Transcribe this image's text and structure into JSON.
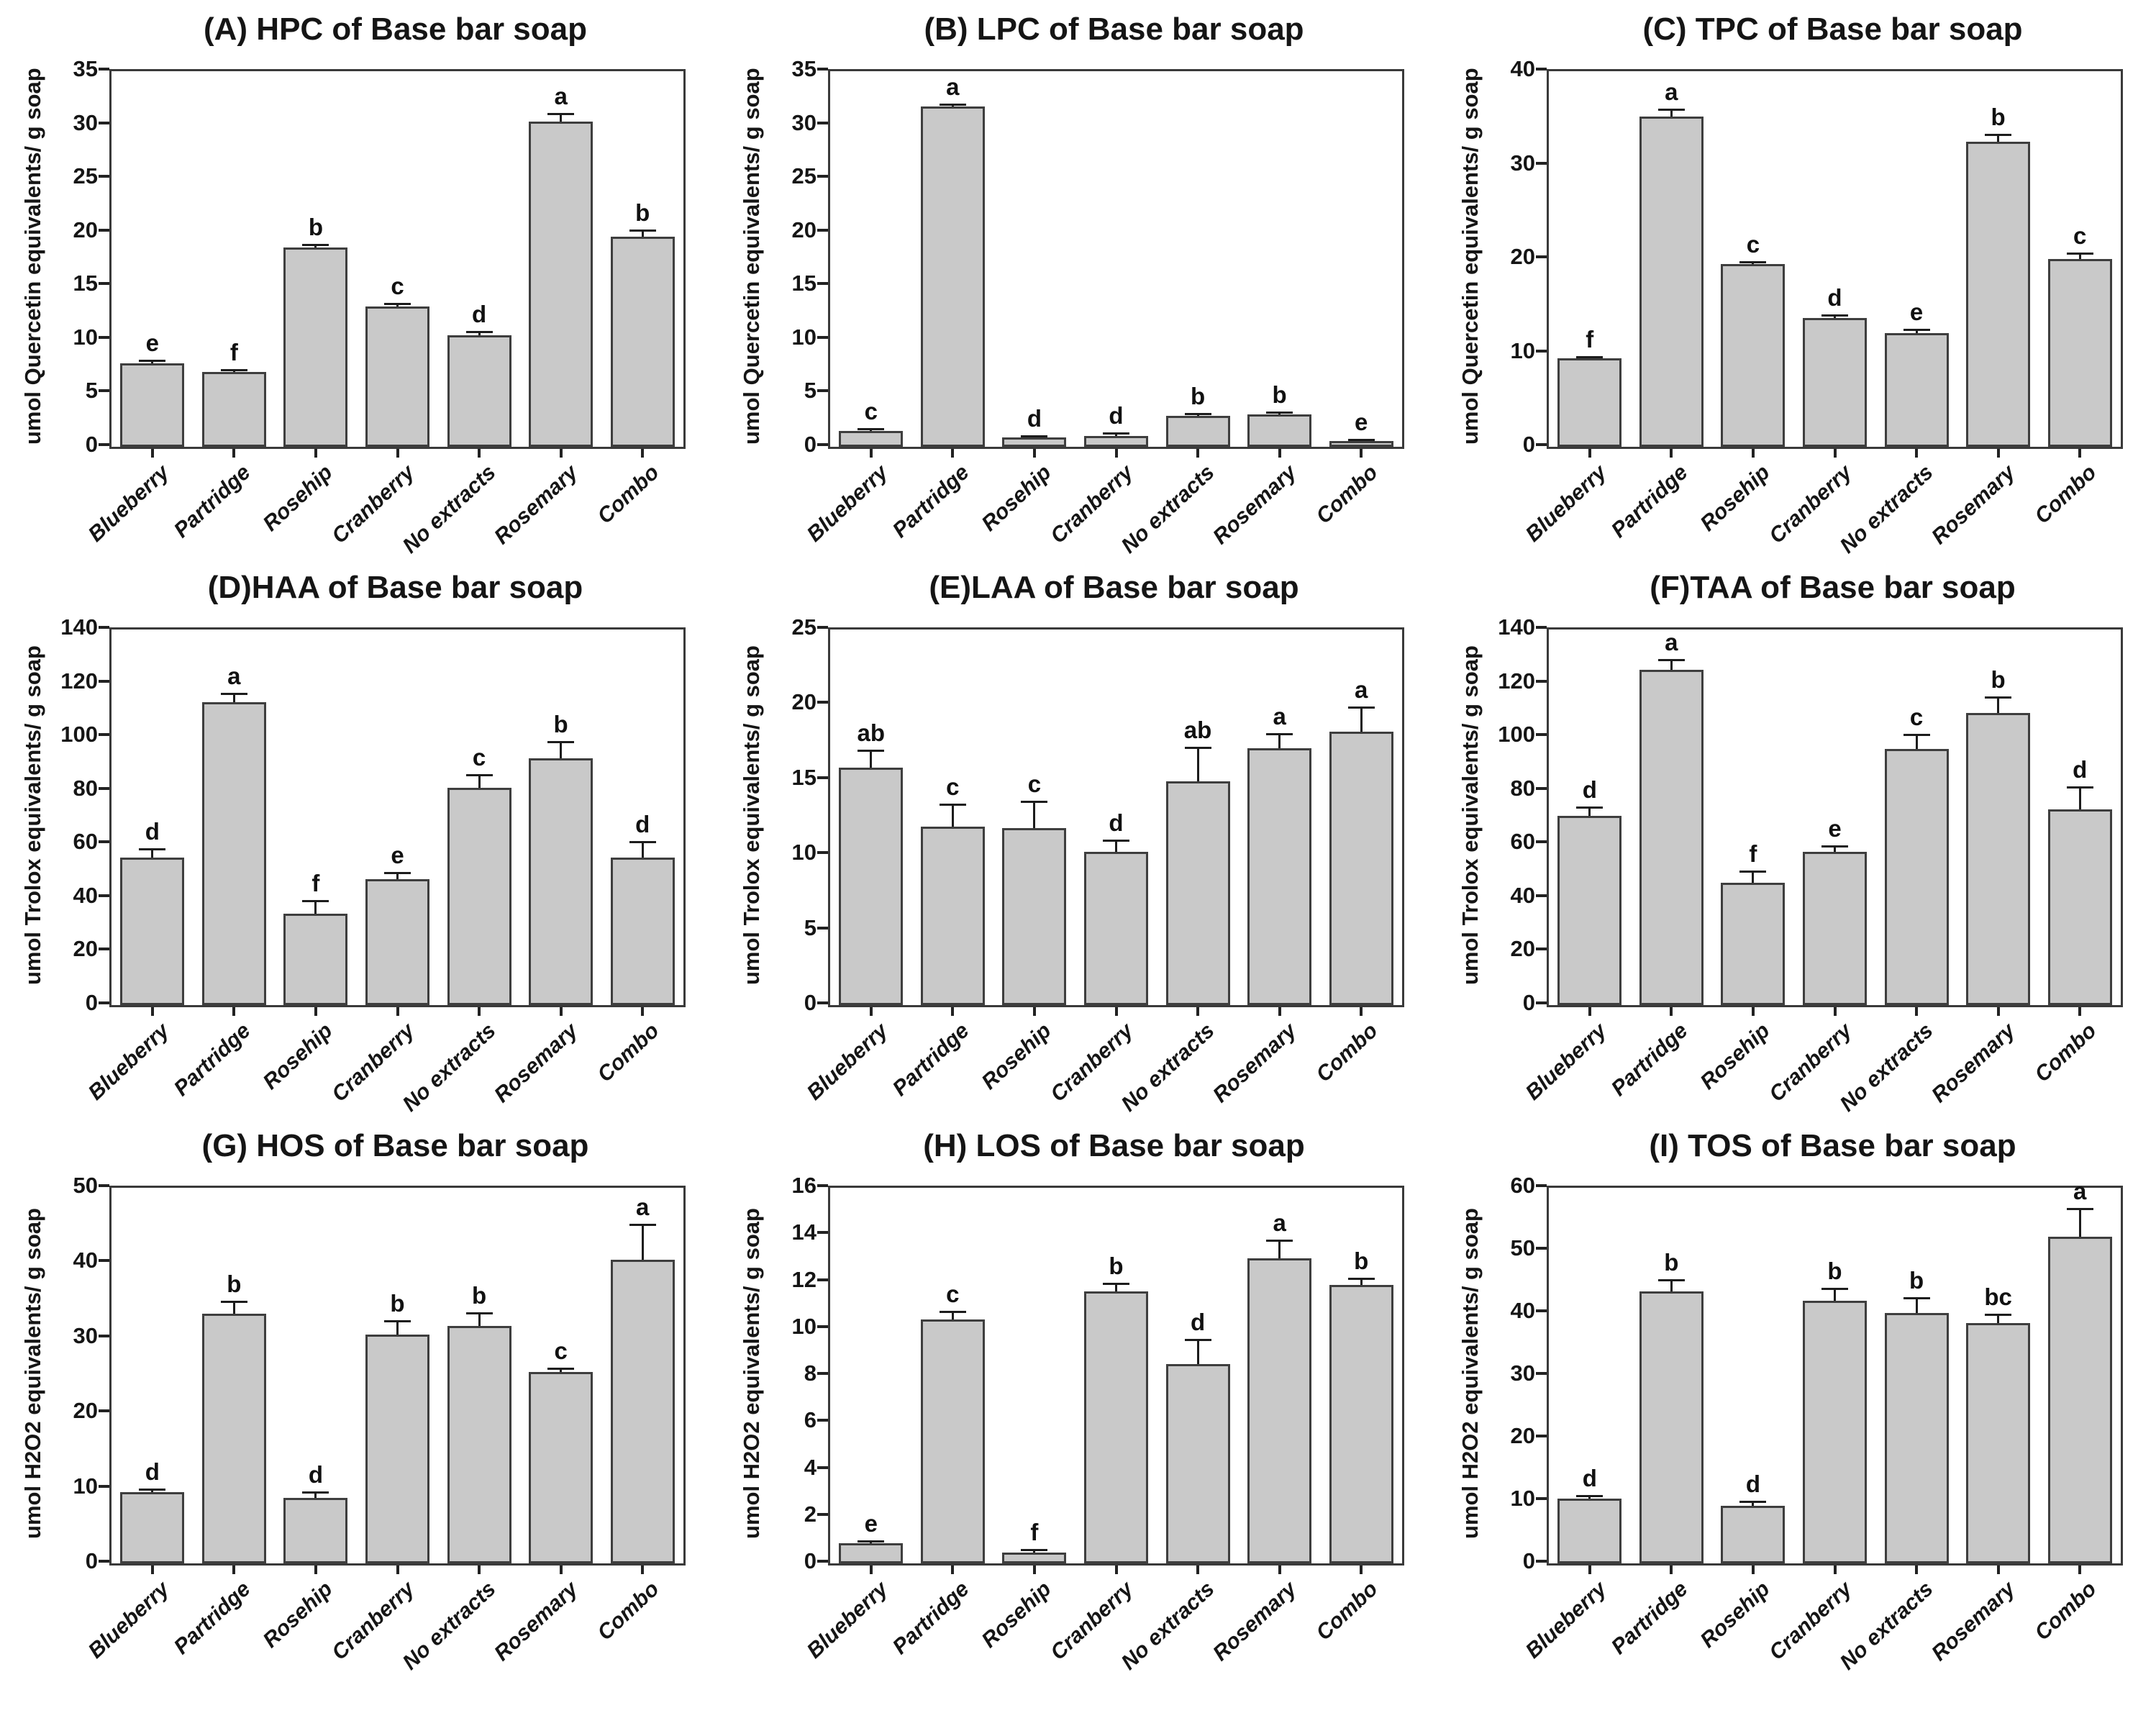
{
  "figure": {
    "background": "#ffffff",
    "bar_fill": "#c9c9c9",
    "bar_border": "#3e3e3e",
    "categories": [
      "Blueberry",
      "Partridge",
      "Rosehip",
      "Cranberry",
      "No extracts",
      "Rosemary",
      "Combo"
    ]
  },
  "chart_data": [
    {
      "id": "A",
      "type": "bar",
      "title": "(A) HPC of Base bar soap",
      "ylabel": "umol Quercetin equivalents/ g soap",
      "categories": [
        "Blueberry",
        "Partridge",
        "Rosehip",
        "Cranberry",
        "No extracts",
        "Rosemary",
        "Combo"
      ],
      "values": [
        7.8,
        7.0,
        18.6,
        13.1,
        10.4,
        30.3,
        19.6
      ],
      "errors": [
        0.15,
        0.1,
        0.2,
        0.2,
        0.25,
        0.7,
        0.5
      ],
      "letters": [
        "e",
        "f",
        "b",
        "c",
        "d",
        "a",
        "b"
      ],
      "ylim": [
        0,
        35
      ],
      "yticks": [
        0,
        5,
        10,
        15,
        20,
        25,
        30,
        35
      ],
      "grid": false,
      "legend": "none"
    },
    {
      "id": "B",
      "type": "bar",
      "title": "(B) LPC of Base bar soap",
      "ylabel": "umol Quercetin equivalents/ g soap",
      "categories": [
        "Blueberry",
        "Partridge",
        "Rosehip",
        "Cranberry",
        "No extracts",
        "Rosemary",
        "Combo"
      ],
      "values": [
        1.5,
        31.7,
        0.85,
        1.0,
        2.9,
        3.05,
        0.55
      ],
      "errors": [
        0.1,
        0.15,
        0.1,
        0.2,
        0.15,
        0.12,
        0.08
      ],
      "letters": [
        "c",
        "a",
        "d",
        "d",
        "b",
        "b",
        "e"
      ],
      "ylim": [
        0,
        35
      ],
      "yticks": [
        0,
        5,
        10,
        15,
        20,
        25,
        30,
        35
      ],
      "grid": false,
      "legend": "none"
    },
    {
      "id": "C",
      "type": "bar",
      "title": "(C) TPC of Base bar soap",
      "ylabel": "umol Quercetin equivalents/ g soap",
      "categories": [
        "Blueberry",
        "Partridge",
        "Rosehip",
        "Cranberry",
        "No extracts",
        "Rosemary",
        "Combo"
      ],
      "values": [
        9.4,
        35.2,
        19.5,
        13.7,
        12.1,
        32.5,
        20.0
      ],
      "errors": [
        0.1,
        0.7,
        0.15,
        0.25,
        0.3,
        0.7,
        0.5
      ],
      "letters": [
        "f",
        "a",
        "c",
        "d",
        "e",
        "b",
        "c"
      ],
      "ylim": [
        0,
        40
      ],
      "yticks": [
        0,
        10,
        20,
        30,
        40
      ],
      "grid": false,
      "legend": "none"
    },
    {
      "id": "D",
      "type": "bar",
      "title": "(D)HAA of Base bar soap",
      "ylabel": "umol Trolox equivalents/ g soap",
      "categories": [
        "Blueberry",
        "Partridge",
        "Rosehip",
        "Cranberry",
        "No extracts",
        "Rosemary",
        "Combo"
      ],
      "values": [
        55,
        113,
        34,
        47,
        81,
        92,
        55
      ],
      "errors": [
        3,
        3,
        4.5,
        2,
        4.5,
        6,
        5.5
      ],
      "letters": [
        "d",
        "a",
        "f",
        "e",
        "c",
        "b",
        "d"
      ],
      "ylim": [
        0,
        140
      ],
      "yticks": [
        0,
        20,
        40,
        60,
        80,
        100,
        120,
        140
      ],
      "grid": false,
      "legend": "none"
    },
    {
      "id": "E",
      "type": "bar",
      "title": "(E)LAA of Base bar soap",
      "ylabel": "umol Trolox equivalents/ g soap",
      "categories": [
        "Blueberry",
        "Partridge",
        "Rosehip",
        "Cranberry",
        "No extracts",
        "Rosemary",
        "Combo"
      ],
      "values": [
        15.8,
        11.9,
        11.8,
        10.2,
        14.9,
        17.1,
        18.2
      ],
      "errors": [
        1.1,
        1.4,
        1.7,
        0.7,
        2.2,
        0.9,
        1.6
      ],
      "letters": [
        "ab",
        "c",
        "c",
        "d",
        "ab",
        "a",
        "a"
      ],
      "ylim": [
        0,
        25
      ],
      "yticks": [
        0,
        5,
        10,
        15,
        20,
        25
      ],
      "grid": false,
      "legend": "none"
    },
    {
      "id": "F",
      "type": "bar",
      "title": "(F)TAA of Base bar soap",
      "ylabel": "umol Trolox equivalents/ g soap",
      "categories": [
        "Blueberry",
        "Partridge",
        "Rosehip",
        "Cranberry",
        "No extracts",
        "Rosemary",
        "Combo"
      ],
      "values": [
        70.5,
        125,
        45.5,
        57,
        95.5,
        109,
        73
      ],
      "errors": [
        3,
        3.5,
        4,
        2,
        5,
        5.5,
        8
      ],
      "letters": [
        "d",
        "a",
        "f",
        "e",
        "c",
        "b",
        "d"
      ],
      "ylim": [
        0,
        140
      ],
      "yticks": [
        0,
        20,
        40,
        60,
        80,
        100,
        120,
        140
      ],
      "grid": false,
      "legend": "none"
    },
    {
      "id": "G",
      "type": "bar",
      "title": "(G) HOS of Base bar soap",
      "ylabel": "umol H2O2 equivalents/ g soap",
      "categories": [
        "Blueberry",
        "Partridge",
        "Rosehip",
        "Cranberry",
        "No extracts",
        "Rosemary",
        "Combo"
      ],
      "values": [
        9.5,
        33.2,
        8.7,
        30.5,
        31.6,
        25.5,
        40.4
      ],
      "errors": [
        0.3,
        1.6,
        0.7,
        1.7,
        1.6,
        0.4,
        4.6
      ],
      "letters": [
        "d",
        "b",
        "d",
        "b",
        "b",
        "c",
        "a"
      ],
      "ylim": [
        0,
        50
      ],
      "yticks": [
        0,
        10,
        20,
        30,
        40,
        50
      ],
      "grid": false,
      "legend": "none"
    },
    {
      "id": "H",
      "type": "bar",
      "title": "(H) LOS of Base bar soap",
      "ylabel": "umol H2O2 equivalents/ g soap",
      "categories": [
        "Blueberry",
        "Partridge",
        "Rosehip",
        "Cranberry",
        "No extracts",
        "Rosemary",
        "Combo"
      ],
      "values": [
        0.85,
        10.4,
        0.45,
        11.6,
        8.5,
        13.0,
        11.85
      ],
      "errors": [
        0.08,
        0.3,
        0.1,
        0.3,
        1.0,
        0.72,
        0.25
      ],
      "letters": [
        "e",
        "c",
        "f",
        "b",
        "d",
        "a",
        "b"
      ],
      "ylim": [
        0,
        16
      ],
      "yticks": [
        0,
        2,
        4,
        6,
        8,
        10,
        12,
        14,
        16
      ],
      "grid": false,
      "legend": "none"
    },
    {
      "id": "I",
      "type": "bar",
      "title": "(I) TOS of Base bar soap",
      "ylabel": "umol H2O2 equivalents/ g soap",
      "categories": [
        "Blueberry",
        "Partridge",
        "Rosehip",
        "Cranberry",
        "No extracts",
        "Rosemary",
        "Combo"
      ],
      "values": [
        10.3,
        43.5,
        9.2,
        42.0,
        40.0,
        38.4,
        52.2
      ],
      "errors": [
        0.4,
        1.7,
        0.6,
        1.8,
        2.3,
        1.2,
        4.3
      ],
      "letters": [
        "d",
        "b",
        "d",
        "b",
        "b",
        "bc",
        "a"
      ],
      "ylim": [
        0,
        60
      ],
      "yticks": [
        0,
        10,
        20,
        30,
        40,
        50,
        60
      ],
      "grid": false,
      "legend": "none"
    }
  ]
}
